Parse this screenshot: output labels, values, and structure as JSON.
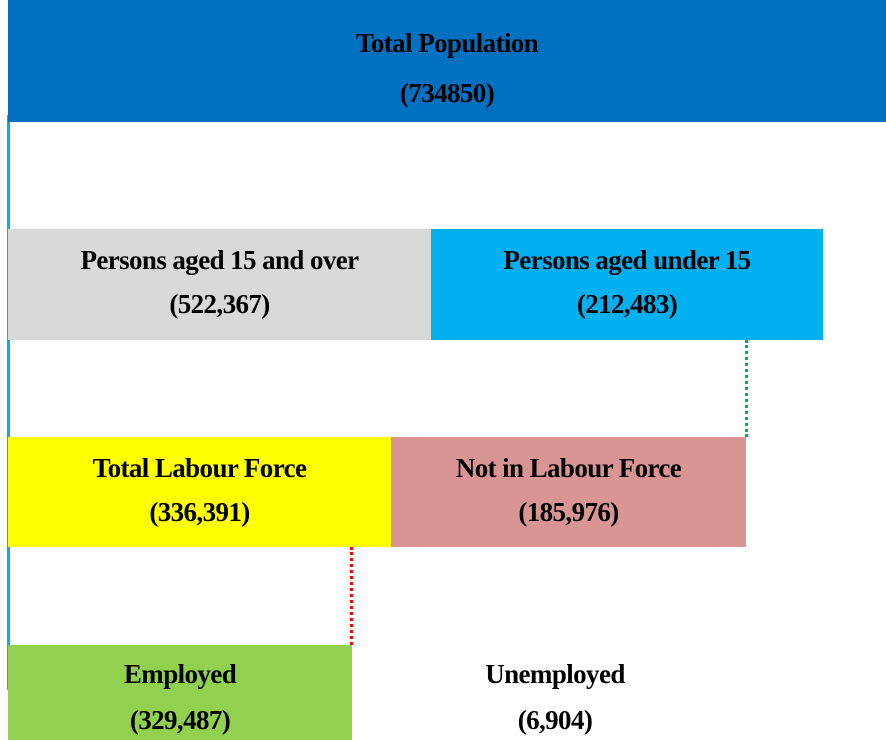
{
  "nodes": [
    {
      "label": "Total Population",
      "value": "(734850)"
    },
    {
      "label": "Persons aged 15 and over",
      "value": "(522,367)"
    },
    {
      "label": "Persons aged under 15",
      "value": "(212,483)"
    },
    {
      "label": "Total Labour Force",
      "value": "(336,391)"
    },
    {
      "label": "Not in Labour Force",
      "value": "(185,976)"
    },
    {
      "label": "Employed",
      "value": "(329,487)"
    },
    {
      "label": "Unemployed",
      "value": "(6,904)"
    }
  ]
}
